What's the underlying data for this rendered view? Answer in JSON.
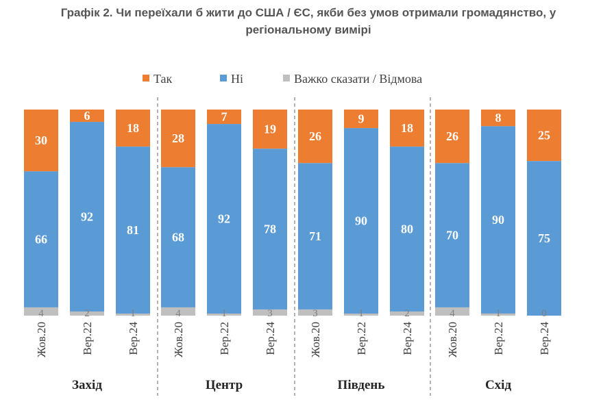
{
  "title_line1": "Графік 2. Чи переїхали б жити до США / ЄС, якби без умов отримали громадянство, у",
  "title_line2": "регіональному вимірі",
  "chart_data": {
    "type": "bar",
    "stacked": true,
    "orientation": "vertical",
    "normalized_percent": true,
    "legend": {
      "placement": "top",
      "entries": [
        "Так",
        "Ні",
        "Важко сказати / Відмова"
      ]
    },
    "colors": {
      "Так": "#ED7D31",
      "Ні": "#5B9BD5",
      "Важко сказати / Відмова": "#BFBFBF"
    },
    "groups": [
      {
        "name": "Захід",
        "categories": [
          "Жов.20",
          "Вер.22",
          "Вер.24"
        ],
        "series": [
          {
            "name": "Так",
            "values": [
              30,
              6,
              18
            ]
          },
          {
            "name": "Ні",
            "values": [
              66,
              92,
              81
            ]
          },
          {
            "name": "Важко сказати / Відмова",
            "values": [
              4,
              2,
              1
            ]
          }
        ]
      },
      {
        "name": "Центр",
        "categories": [
          "Жов.20",
          "Вер.22",
          "Вер.24"
        ],
        "series": [
          {
            "name": "Так",
            "values": [
              28,
              7,
              19
            ]
          },
          {
            "name": "Ні",
            "values": [
              68,
              92,
              78
            ]
          },
          {
            "name": "Важко сказати / Відмова",
            "values": [
              4,
              1,
              3
            ]
          }
        ]
      },
      {
        "name": "Південь",
        "categories": [
          "Жов.20",
          "Вер.22",
          "Вер.24"
        ],
        "series": [
          {
            "name": "Так",
            "values": [
              26,
              9,
              18
            ]
          },
          {
            "name": "Ні",
            "values": [
              71,
              90,
              80
            ]
          },
          {
            "name": "Важко сказати / Відмова",
            "values": [
              3,
              1,
              2
            ]
          }
        ]
      },
      {
        "name": "Схід",
        "categories": [
          "Жов.20",
          "Вер.22",
          "Вер.24"
        ],
        "series": [
          {
            "name": "Так",
            "values": [
              26,
              8,
              25
            ]
          },
          {
            "name": "Ні",
            "values": [
              70,
              90,
              75
            ]
          },
          {
            "name": "Важко сказати / Відмова",
            "values": [
              4,
              1,
              0
            ]
          }
        ]
      }
    ],
    "grid": false,
    "group_separators": "dashed"
  }
}
